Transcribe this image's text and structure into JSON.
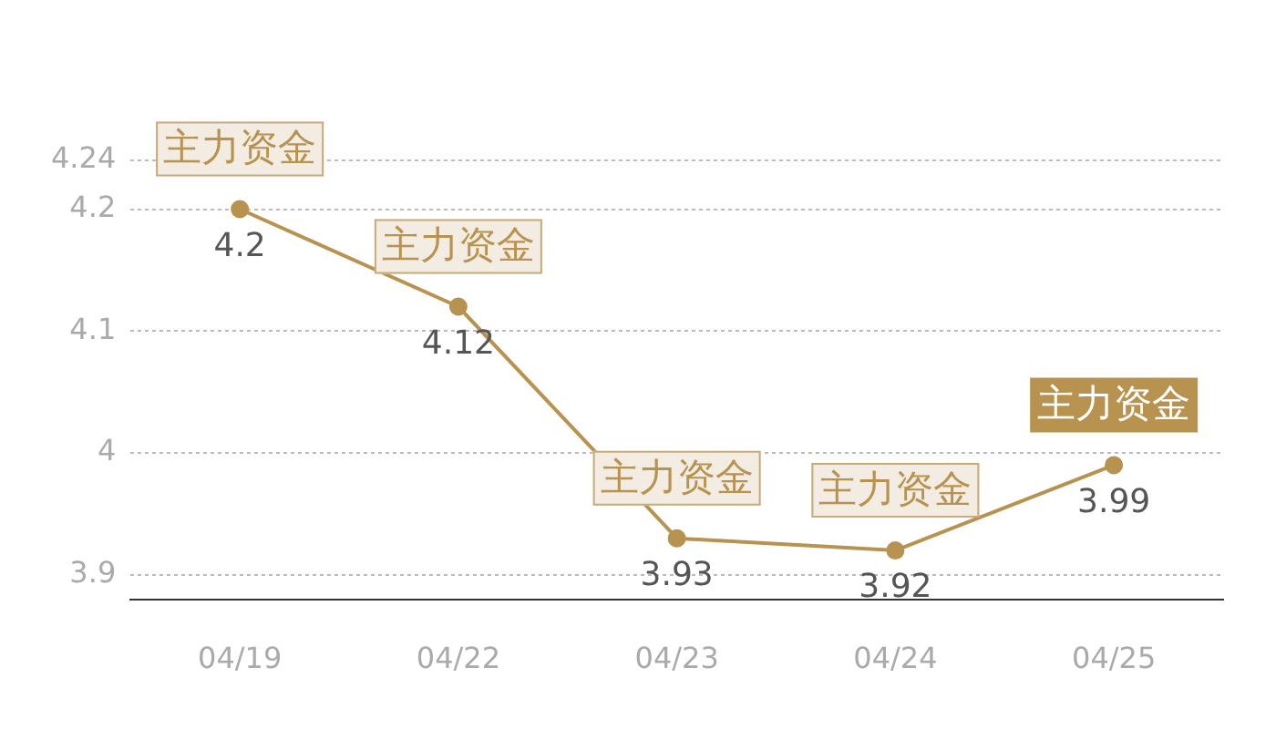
{
  "chart_data": {
    "type": "line",
    "categories": [
      "04/19",
      "04/22",
      "04/23",
      "04/24",
      "04/25"
    ],
    "series": [
      {
        "color": "#b8924f",
        "values": [
          4.2,
          4.12,
          3.93,
          3.92,
          3.99
        ]
      }
    ],
    "ylim": [
      3.88,
      4.24
    ],
    "yticks": [
      3.9,
      4,
      4.1,
      4.2,
      4.24
    ],
    "grid": "y",
    "marker": "circle",
    "line_style": "solid",
    "data_labels": true,
    "annotations": [
      {
        "text": "主力资金",
        "x": "04/19",
        "y": 4.2
      },
      {
        "text": "主力资金",
        "x": "04/22",
        "y": 4.12
      },
      {
        "text": "主力资金",
        "x": "04/23",
        "y": 3.93
      },
      {
        "text": "主力资金",
        "x": "04/24",
        "y": 3.92
      },
      {
        "text": "主力资金",
        "x": "04/25",
        "y": 3.99
      }
    ]
  }
}
